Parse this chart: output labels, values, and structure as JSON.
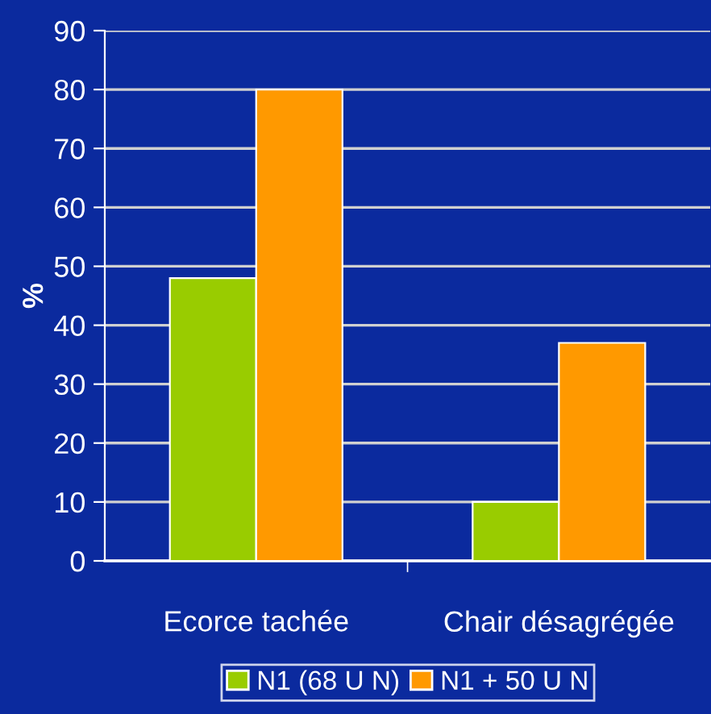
{
  "chart_data": {
    "type": "bar",
    "ylabel": "%",
    "categories": [
      "Ecorce tachée",
      "Chair désagrégée"
    ],
    "series": [
      {
        "name": "N1 (68 U N)",
        "color": "#99cc00",
        "values": [
          48,
          10
        ]
      },
      {
        "name": "N1 + 50 U N",
        "color": "#ff9900",
        "values": [
          80,
          37
        ]
      }
    ],
    "ylim": [
      0,
      90
    ],
    "yticks": [
      0,
      10,
      20,
      30,
      40,
      50,
      60,
      70,
      80,
      90
    ],
    "grid": "y",
    "legend": "bottom"
  }
}
